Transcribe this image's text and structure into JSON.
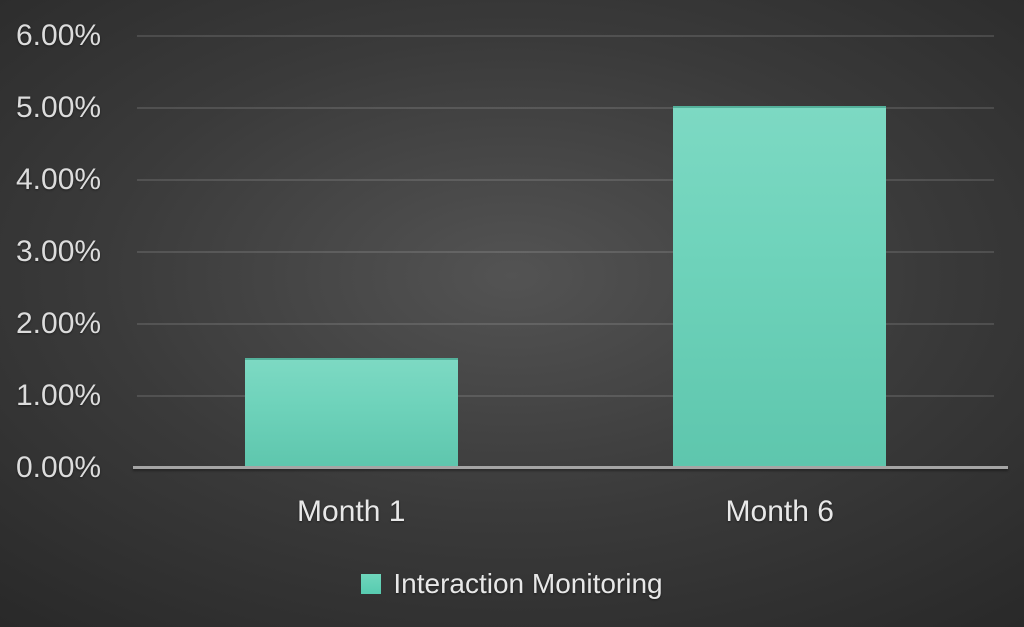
{
  "chart_data": {
    "type": "bar",
    "title": "",
    "categories": [
      "Month 1",
      "Month 6"
    ],
    "series": [
      {
        "name": "Interaction Monitoring",
        "values": [
          1.5,
          5.0
        ]
      }
    ],
    "value_format": "0.00%",
    "xlabel": "",
    "ylabel": "",
    "ylim": [
      0,
      6
    ],
    "ytick_step": 1,
    "yticks": [
      {
        "value": 6,
        "label": "6.00%"
      },
      {
        "value": 5,
        "label": "5.00%"
      },
      {
        "value": 4,
        "label": "4.00%"
      },
      {
        "value": 3,
        "label": "3.00%"
      },
      {
        "value": 2,
        "label": "2.00%"
      },
      {
        "value": 1,
        "label": "1.00%"
      },
      {
        "value": 0,
        "label": "0.00%"
      }
    ],
    "grid": true,
    "legend_position": "bottom",
    "legend_entries": [
      "Interaction Monitoring"
    ]
  },
  "colors": {
    "bar_fill_top": "#7dd9c3",
    "bar_fill_bottom": "#5ec6ad",
    "legend_swatch": "#5fd0b4",
    "axis_line": "#a5a5a5",
    "gridline": "#5f5f5f",
    "tick_text": "#dcdcdc",
    "category_text": "#e8e8e8",
    "background_center": "#535353",
    "background_edge": "#232323"
  }
}
